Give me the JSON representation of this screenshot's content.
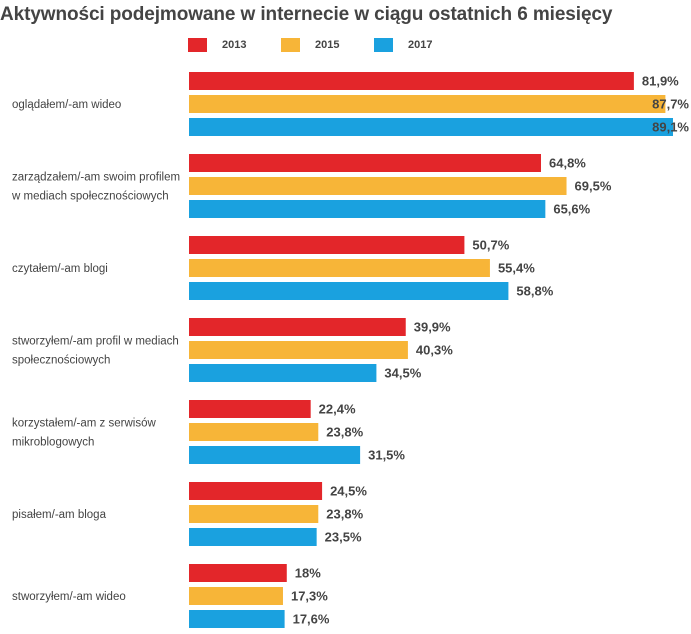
{
  "title": "Aktywności podejmowane w internecie w ciągu ostatnich 6 miesięcy",
  "colors": {
    "2013": "#e3262a",
    "2015": "#f7b538",
    "2017": "#1aa1df",
    "text": "#444444"
  },
  "legend": [
    {
      "name": "2013",
      "color": "#e3262a"
    },
    {
      "name": "2015",
      "color": "#f7b538"
    },
    {
      "name": "2017",
      "color": "#1aa1df"
    }
  ],
  "chart_data": {
    "type": "bar",
    "orientation": "horizontal",
    "title": "Aktywności podejmowane w internecie w ciągu ostatnich 6 miesięcy",
    "legend_position": "top",
    "grid": false,
    "xlim": [
      0,
      89.1
    ],
    "categories": [
      [
        "oglądałem/-am wideo"
      ],
      [
        "zarządzałem/-am swoim profilem",
        "w mediach społecznościowych"
      ],
      [
        "czytałem/-am blogi"
      ],
      [
        "stworzyłem/-am profil w mediach",
        "społecznościowych"
      ],
      [
        "korzystałem/-am z serwisów",
        "mikroblogowych"
      ],
      [
        "pisałem/-am bloga"
      ],
      [
        "stworzyłem/-am wideo"
      ]
    ],
    "series": [
      {
        "name": "2013",
        "color": "#e3262a",
        "values": [
          81.9,
          64.8,
          50.7,
          39.9,
          22.4,
          24.5,
          18
        ],
        "labels": [
          "81,9%",
          "64,8%",
          "50,7%",
          "39,9%",
          "22,4%",
          "24,5%",
          "18%"
        ]
      },
      {
        "name": "2015",
        "color": "#f7b538",
        "values": [
          87.7,
          69.5,
          55.4,
          40.3,
          23.8,
          23.8,
          17.3
        ],
        "labels": [
          "87,7%",
          "69,5%",
          "55,4%",
          "40,3%",
          "23,8%",
          "23,8%",
          "17,3%"
        ]
      },
      {
        "name": "2017",
        "color": "#1aa1df",
        "values": [
          89.1,
          65.6,
          58.8,
          34.5,
          31.5,
          23.5,
          17.6
        ],
        "labels": [
          "89,1%",
          "65,6%",
          "58,8%",
          "34,5%",
          "31,5%",
          "23,5%",
          "17,6%"
        ]
      }
    ]
  }
}
